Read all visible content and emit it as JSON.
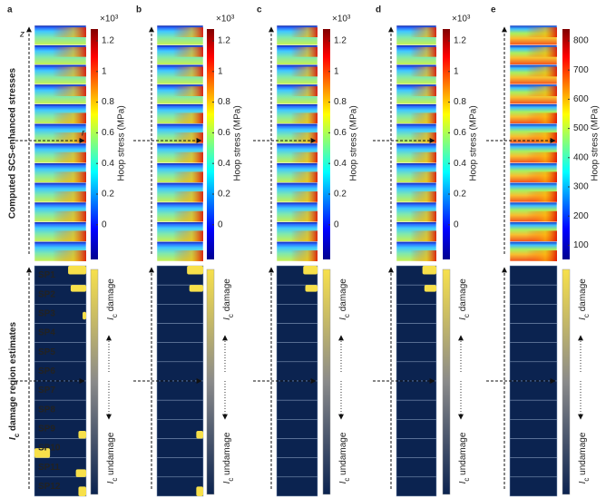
{
  "panels": [
    {
      "label": "a",
      "colorbar": {
        "multiplier": "×10³",
        "ticks": [
          1.2,
          1,
          0.8,
          0.6,
          0.4,
          0.2,
          0
        ],
        "label": "Hoop stress (MPa)"
      }
    },
    {
      "label": "b",
      "colorbar": {
        "multiplier": "×10³",
        "ticks": [
          1.2,
          1,
          0.8,
          0.6,
          0.4,
          0.2,
          0
        ],
        "label": "Hoop stress (MPa)"
      }
    },
    {
      "label": "c",
      "colorbar": {
        "multiplier": "×10³",
        "ticks": [
          1.2,
          1,
          0.8,
          0.6,
          0.4,
          0.2,
          0
        ],
        "label": "Hoop stress (MPa)"
      }
    },
    {
      "label": "d",
      "colorbar": {
        "multiplier": "×10³",
        "ticks": [
          1.2,
          1,
          0.8,
          0.6,
          0.4,
          0.2,
          0
        ],
        "label": "Hoop stress (MPa)"
      }
    },
    {
      "label": "e",
      "colorbar": {
        "multiplier": "",
        "ticks": [
          800,
          700,
          600,
          500,
          400,
          300,
          200,
          100
        ],
        "label": "Hoop stress (MPa)"
      }
    }
  ],
  "row_labels": {
    "top": "Computed SCS-enhanced stresses",
    "bottom": {
      "symbol": "I",
      "subscript": "c",
      "text": " damage region estimates"
    }
  },
  "axes": {
    "z": "z",
    "r": "r"
  },
  "damage_colorbar": {
    "symbol": "I",
    "subscript": "c",
    "top": " damage",
    "bottom": " undamage"
  },
  "specimens": [
    "SP1",
    "SP2",
    "SP3",
    "SP4",
    "SP5",
    "SP6",
    "SP7",
    "SP8",
    "SP9",
    "SP10",
    "SP11",
    "SP12"
  ]
}
